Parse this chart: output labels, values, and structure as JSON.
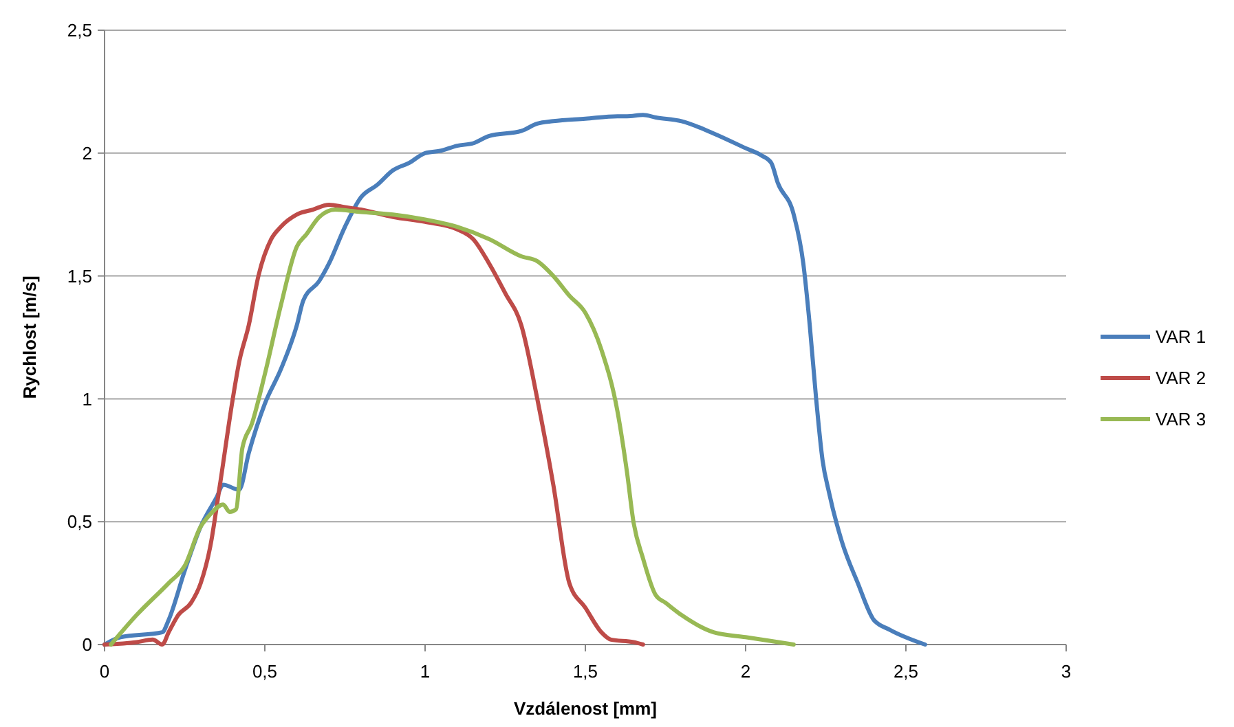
{
  "chart_data": {
    "type": "line",
    "xlabel": "Vzdálenost [mm]",
    "ylabel": "Rychlost [m/s]",
    "xlim": [
      0,
      3
    ],
    "ylim": [
      0,
      2.5
    ],
    "xticks": [
      0,
      {
        "value": 0.5,
        "label": "0,5"
      },
      1,
      {
        "value": 1.5,
        "label": "1,5"
      },
      2,
      {
        "value": 2.5,
        "label": "2,5"
      },
      3
    ],
    "yticks": [
      0,
      {
        "value": 0.5,
        "label": "0,5"
      },
      1,
      {
        "value": 1.5,
        "label": "1,5"
      },
      2,
      {
        "value": 2.5,
        "label": "2,5"
      }
    ],
    "grid": "y",
    "legend": "right",
    "marker": "none",
    "line_style": "solid",
    "series": [
      {
        "name": "VAR 1",
        "color": "#4a7ebb",
        "x": [
          0,
          0.05,
          0.18,
          0.2,
          0.25,
          0.3,
          0.35,
          0.37,
          0.42,
          0.45,
          0.5,
          0.55,
          0.6,
          0.62,
          0.67,
          0.7,
          0.75,
          0.8,
          0.85,
          0.9,
          0.95,
          1,
          1.05,
          1.1,
          1.15,
          1.2,
          1.3,
          1.35,
          1.4,
          1.5,
          1.6,
          1.63,
          1.68,
          1.72,
          1.8,
          1.9,
          2,
          2.05,
          2.08,
          2.1,
          2.15,
          2.18,
          2.2,
          2.22,
          2.24,
          2.26,
          2.3,
          2.35,
          2.4,
          2.45,
          2.56
        ],
        "values": [
          0,
          0.03,
          0.05,
          0.1,
          0.3,
          0.48,
          0.6,
          0.65,
          0.63,
          0.78,
          0.98,
          1.12,
          1.3,
          1.4,
          1.48,
          1.55,
          1.7,
          1.82,
          1.87,
          1.93,
          1.96,
          2,
          2.01,
          2.03,
          2.04,
          2.07,
          2.09,
          2.12,
          2.13,
          2.14,
          2.15,
          2.15,
          2.155,
          2.145,
          2.13,
          2.08,
          2.02,
          1.99,
          1.96,
          1.88,
          1.75,
          1.55,
          1.3,
          1,
          0.75,
          0.62,
          0.42,
          0.25,
          0.1,
          0.06,
          0
        ]
      },
      {
        "name": "VAR 2",
        "color": "#be4b48",
        "x": [
          0,
          0.1,
          0.15,
          0.18,
          0.2,
          0.23,
          0.27,
          0.3,
          0.33,
          0.36,
          0.4,
          0.42,
          0.45,
          0.48,
          0.52,
          0.55,
          0.6,
          0.65,
          0.7,
          0.75,
          0.8,
          0.9,
          1,
          1.1,
          1.15,
          1.2,
          1.25,
          1.3,
          1.35,
          1.4,
          1.45,
          1.5,
          1.55,
          1.58,
          1.65,
          1.68
        ],
        "values": [
          0,
          0.01,
          0.02,
          0,
          0.05,
          0.12,
          0.17,
          0.25,
          0.4,
          0.65,
          1,
          1.15,
          1.3,
          1.5,
          1.65,
          1.7,
          1.75,
          1.77,
          1.79,
          1.78,
          1.77,
          1.74,
          1.72,
          1.69,
          1.65,
          1.55,
          1.43,
          1.3,
          1,
          0.65,
          0.25,
          0.15,
          0.05,
          0.02,
          0.01,
          0
        ]
      },
      {
        "name": "VAR 3",
        "color": "#98b954",
        "x": [
          0.02,
          0.1,
          0.2,
          0.25,
          0.3,
          0.33,
          0.37,
          0.39,
          0.41,
          0.43,
          0.46,
          0.5,
          0.55,
          0.6,
          0.63,
          0.67,
          0.72,
          0.8,
          0.9,
          1,
          1.1,
          1.2,
          1.3,
          1.35,
          1.4,
          1.45,
          1.5,
          1.55,
          1.6,
          1.63,
          1.65,
          1.68,
          1.72,
          1.75,
          1.8,
          1.9,
          2,
          2.15
        ],
        "values": [
          0,
          0.12,
          0.25,
          0.32,
          0.48,
          0.53,
          0.57,
          0.54,
          0.55,
          0.8,
          0.9,
          1.1,
          1.38,
          1.62,
          1.67,
          1.74,
          1.77,
          1.76,
          1.75,
          1.73,
          1.7,
          1.65,
          1.58,
          1.56,
          1.5,
          1.42,
          1.35,
          1.2,
          0.95,
          0.7,
          0.5,
          0.35,
          0.2,
          0.17,
          0.12,
          0.05,
          0.03,
          0
        ]
      }
    ]
  }
}
